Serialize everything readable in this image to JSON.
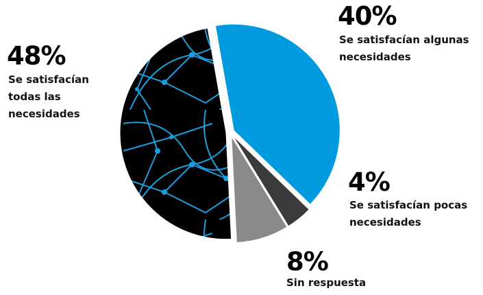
{
  "chart_data": {
    "type": "pie",
    "categories": [
      "Se satisfacían algunas necesidades",
      "Se satisfacían pocas necesidades",
      "Sin respuesta",
      "Se satisfacían todas las necesidades"
    ],
    "values": [
      40,
      4,
      8,
      48
    ],
    "value_labels": [
      "40%",
      "4%",
      "8%",
      "48%"
    ],
    "colors": [
      "#009ade",
      "#3b3b3b",
      "#8a8a8a",
      "#000000"
    ]
  }
}
